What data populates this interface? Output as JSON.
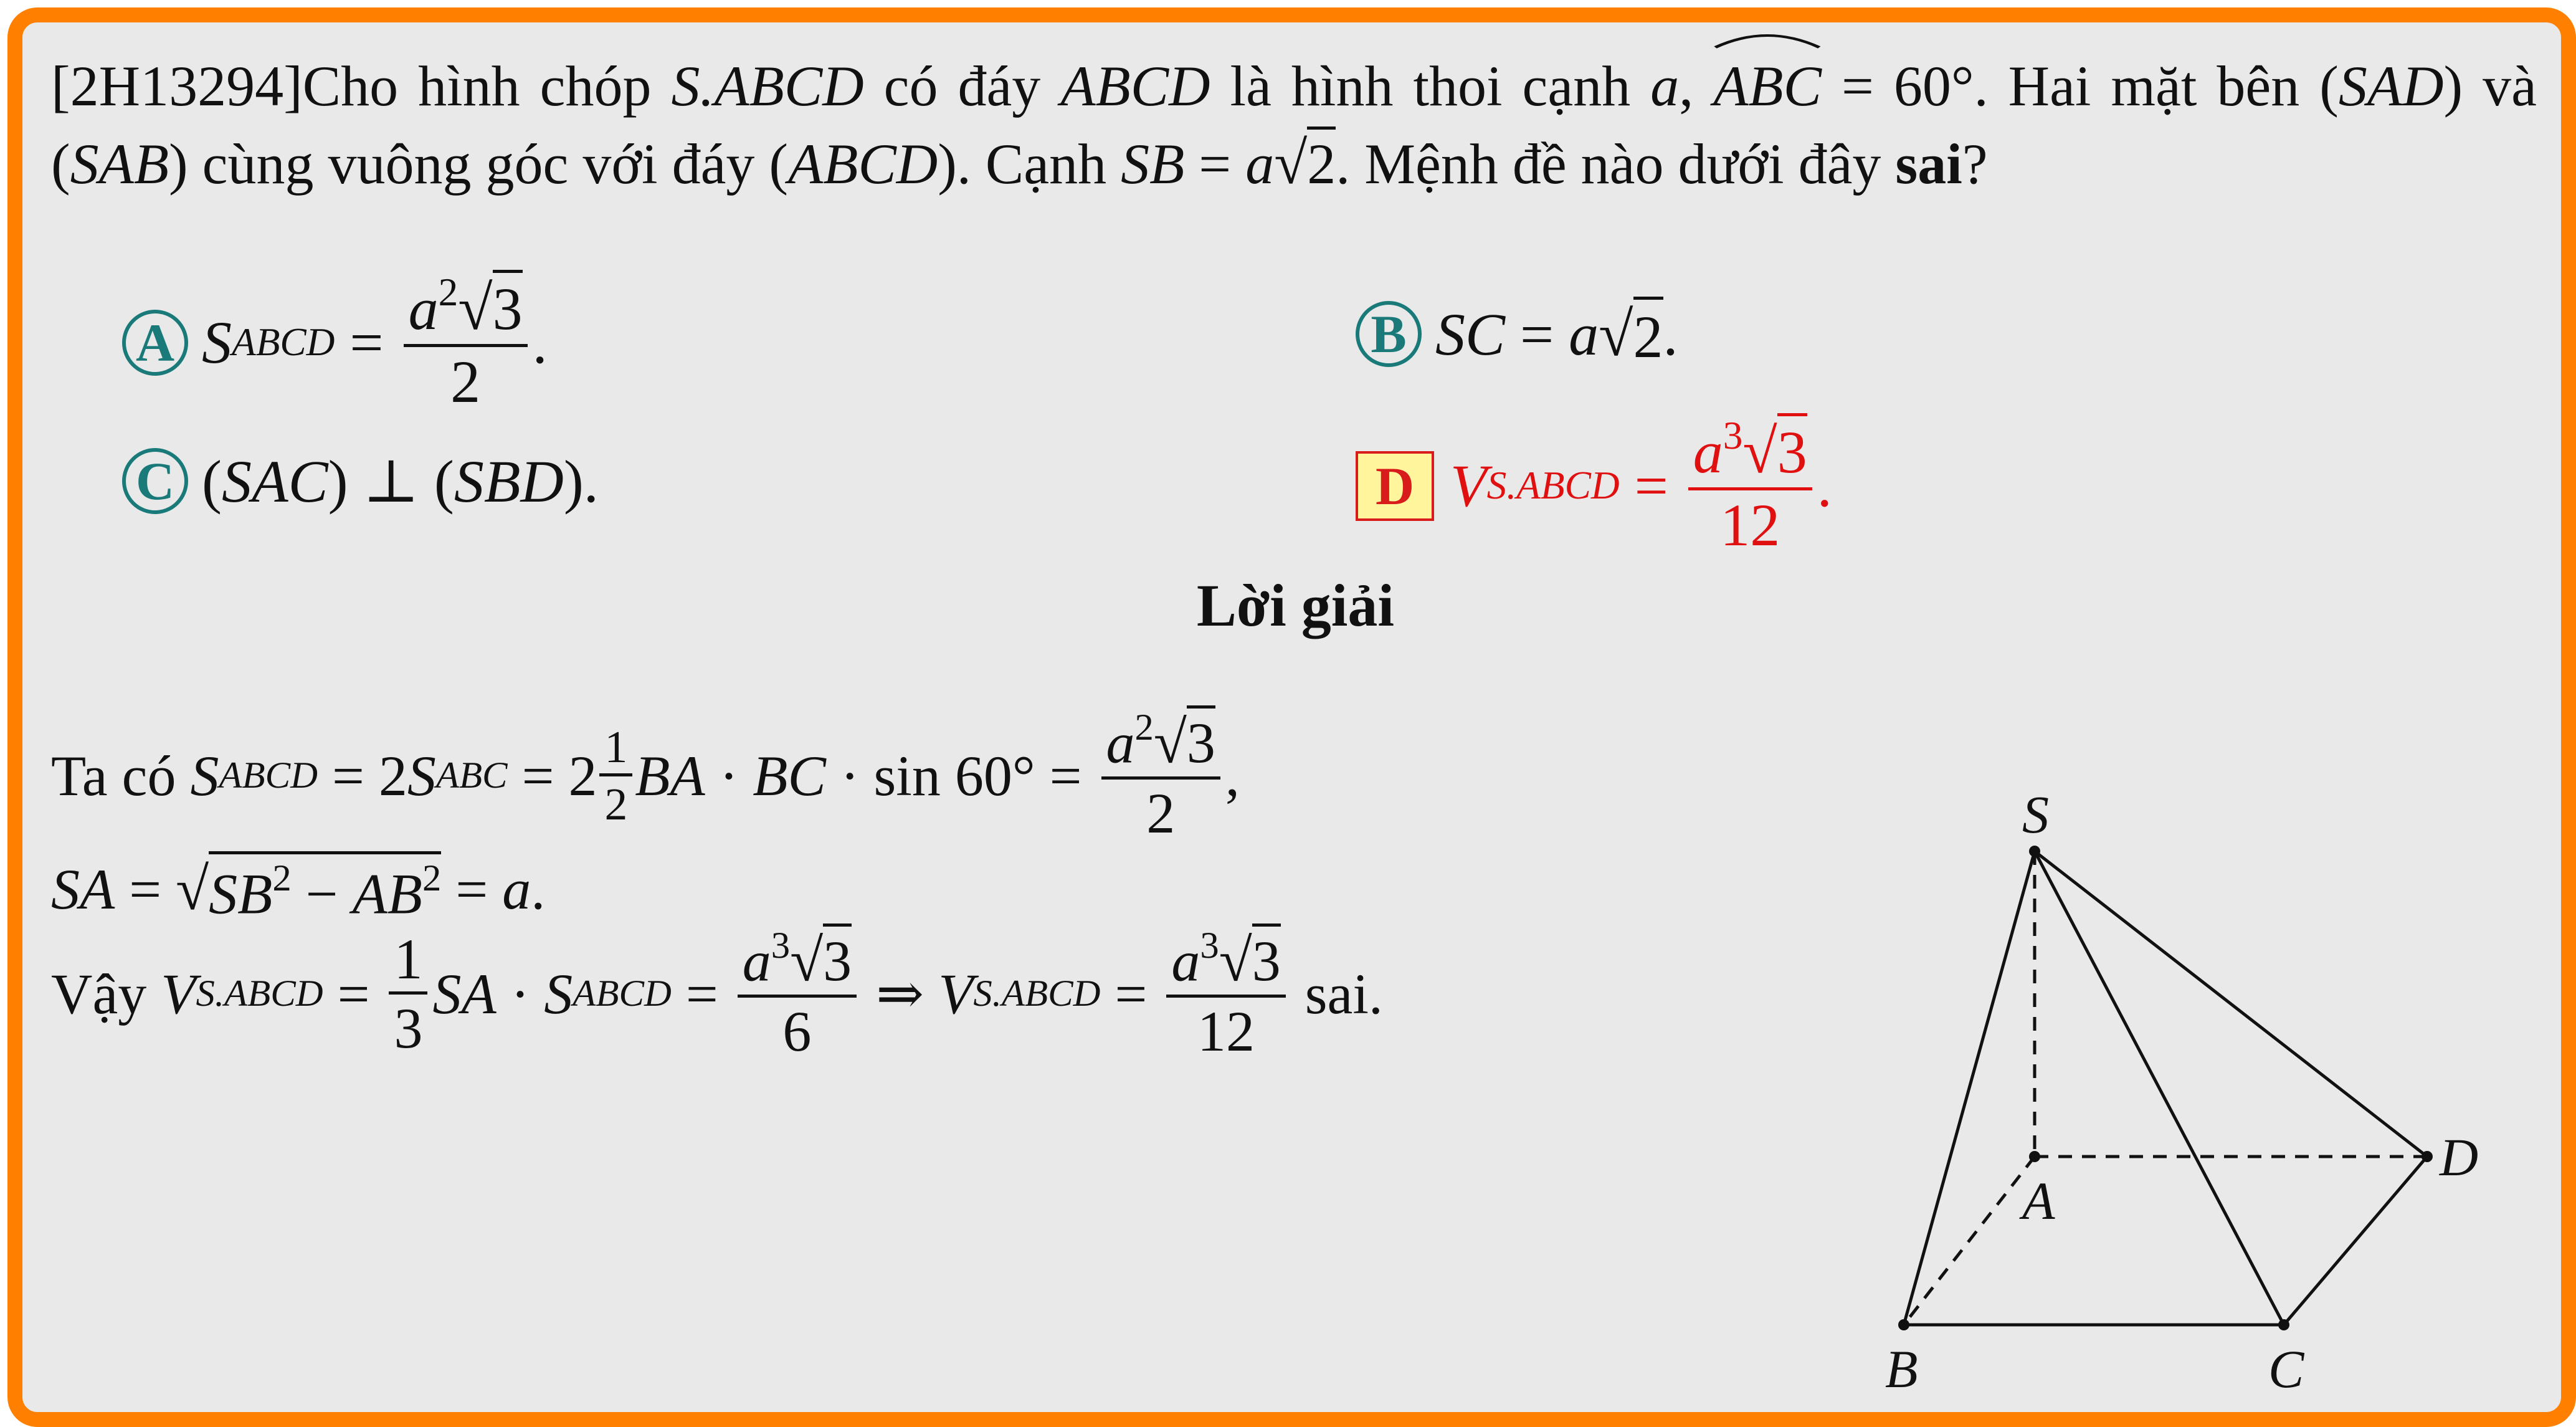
{
  "question": {
    "code": "[2H13294]",
    "t1": "Cho hình chóp ",
    "m_pyr": "S.ABCD",
    "t2": " có đáy ",
    "m_base": "ABCD",
    "t3": " là hình thoi cạnh ",
    "m_a": "a",
    "t4": ", ",
    "m_angle": "ABC",
    "m_angle_val": " = 60°",
    "t5": ". Hai mặt bên (",
    "m_sad": "SAD",
    "t6": ") và (",
    "m_sab": "SAB",
    "t7": ") cùng vuông góc với đáy (",
    "m_abcd2": "ABCD",
    "t8": "). Cạnh ",
    "m_sb": "SB",
    "t9": " = ",
    "m_a2": "a",
    "m_sqrt2": "2",
    "t10": ". Mệnh đề nào dưới đây ",
    "bold_word": "sai",
    "t11": "?"
  },
  "options": {
    "A": {
      "label": "A",
      "lhs": "S",
      "lhs_sub": "ABCD",
      "eq": " = ",
      "num_a": "a",
      "num_exp": "2",
      "num_rad": "3",
      "den": "2",
      "end": "."
    },
    "B": {
      "label": "B",
      "lhs": "SC",
      "eq": " = ",
      "a": "a",
      "rad": "2",
      "end": "."
    },
    "C": {
      "label": "C",
      "text1": "(",
      "m1": "SAC",
      "text2": ") ⊥ (",
      "m2": "SBD",
      "text3": ")."
    },
    "D": {
      "label": "D",
      "lhs": "V",
      "lhs_sub": "S.ABCD",
      "eq": " = ",
      "num_a": "a",
      "num_exp": "3",
      "num_rad": "3",
      "den": "12",
      "end": "."
    }
  },
  "solution": {
    "heading": "Lời giải",
    "l1": {
      "t": "Ta có ",
      "s": "S",
      "s_sub": "ABCD",
      "eq1": " = 2",
      "s2": "S",
      "s2_sub": "ABC",
      "eq2": " = 2",
      "fn": "1",
      "fd": "2",
      "ba": "BA",
      "dot": " · ",
      "bc": "BC",
      "sin": " · sin 60° = ",
      "na": "a",
      "ne": "2",
      "nr": "3",
      "d": "2",
      "end": ","
    },
    "l2": {
      "sa": "SA",
      "eq": " = ",
      "sb": "SB",
      "e1": "2",
      "minus": " − ",
      "ab": "AB",
      "e2": "2",
      "eq2": " = ",
      "a": "a",
      "end": "."
    },
    "l3": {
      "t": "Vậy ",
      "v": "V",
      "v_sub": "S.ABCD",
      "eq": " = ",
      "fn": "1",
      "fd": "3",
      "sa": "SA",
      "dot": " · ",
      "s": "S",
      "s_sub": "ABCD",
      "eq2": " = ",
      "na": "a",
      "ne": "3",
      "nr": "3",
      "d": "6",
      "imp": " ⇒ ",
      "v2": "V",
      "v2_sub": "S.ABCD",
      "eq3": " = ",
      "na2": "a",
      "ne2": "3",
      "nr2": "3",
      "d2": "12",
      "end": " sai."
    }
  },
  "figure": {
    "labels": {
      "S": "S",
      "A": "A",
      "B": "B",
      "C": "C",
      "D": "D"
    }
  },
  "colors": {
    "border": "#ff8000",
    "background": "#e9e9e9",
    "circle": "#1a7a7a",
    "answer": "#e01010",
    "answer_box": "#fff59d"
  }
}
